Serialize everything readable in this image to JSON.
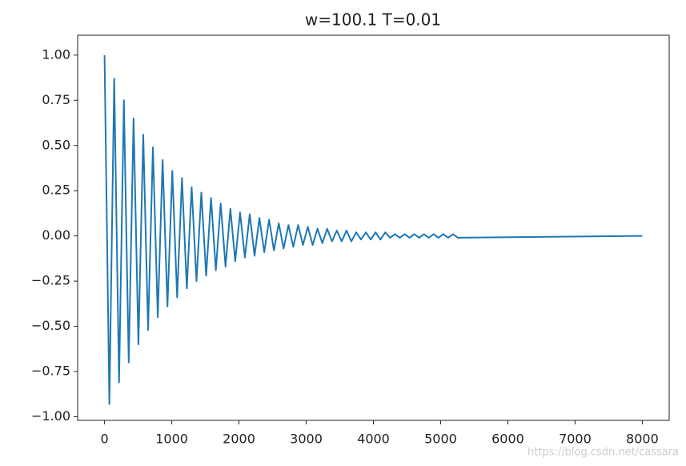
{
  "chart_data": {
    "type": "line",
    "title": "w=100.1  T=0.01",
    "x": [
      0,
      72,
      144,
      216,
      288,
      360,
      432,
      504,
      576,
      648,
      720,
      792,
      864,
      936,
      1008,
      1080,
      1152,
      1224,
      1296,
      1368,
      1440,
      1512,
      1584,
      1656,
      1728,
      1800,
      1872,
      1944,
      2016,
      2088,
      2160,
      2232,
      2304,
      2376,
      2448,
      2520,
      2592,
      2664,
      2736,
      2808,
      2880,
      2952,
      3024,
      3096,
      3168,
      3240,
      3312,
      3384,
      3456,
      3528,
      3600,
      3672,
      3744,
      3816,
      3888,
      3960,
      4032,
      4104,
      4176,
      4248,
      4320,
      4392,
      4464,
      4536,
      4608,
      4680,
      4752,
      4824,
      4896,
      4968,
      5040,
      5112,
      5184,
      5256,
      8000
    ],
    "values": [
      1.0,
      -0.93,
      0.87,
      -0.81,
      0.75,
      -0.7,
      0.65,
      -0.6,
      0.56,
      -0.52,
      0.49,
      -0.45,
      0.42,
      -0.39,
      0.36,
      -0.34,
      0.32,
      -0.29,
      0.27,
      -0.25,
      0.24,
      -0.22,
      0.21,
      -0.19,
      0.18,
      -0.17,
      0.15,
      -0.14,
      0.13,
      -0.12,
      0.12,
      -0.11,
      0.1,
      -0.09,
      0.09,
      -0.08,
      0.07,
      -0.07,
      0.06,
      -0.06,
      0.06,
      -0.05,
      0.05,
      -0.05,
      0.04,
      -0.04,
      0.04,
      -0.03,
      0.03,
      -0.03,
      0.03,
      -0.03,
      0.02,
      -0.02,
      0.02,
      -0.02,
      0.02,
      -0.02,
      0.02,
      -0.01,
      0.01,
      -0.01,
      0.01,
      -0.01,
      0.01,
      -0.01,
      0.01,
      -0.01,
      0.01,
      -0.01,
      0.01,
      -0.01,
      0.01,
      -0.01,
      0
    ],
    "color": "#1f77b4",
    "xlim": [
      -400,
      8400
    ],
    "xticks": [
      0,
      1000,
      2000,
      3000,
      4000,
      5000,
      6000,
      7000,
      8000
    ],
    "ylim": [
      -1.02,
      1.11
    ],
    "yticks": [
      {
        "value": -1,
        "label": "−1.00"
      },
      {
        "value": -0.75,
        "label": "−0.75"
      },
      {
        "value": -0.5,
        "label": "−0.50"
      },
      {
        "value": -0.25,
        "label": "−0.25"
      },
      {
        "value": 0,
        "label": "0.00"
      },
      {
        "value": 0.25,
        "label": "0.25"
      },
      {
        "value": 0.5,
        "label": "0.50"
      },
      {
        "value": 0.75,
        "label": "0.75"
      },
      {
        "value": 1,
        "label": "1.00"
      }
    ],
    "watermark": "https://blog.csdn.net/cassara"
  }
}
